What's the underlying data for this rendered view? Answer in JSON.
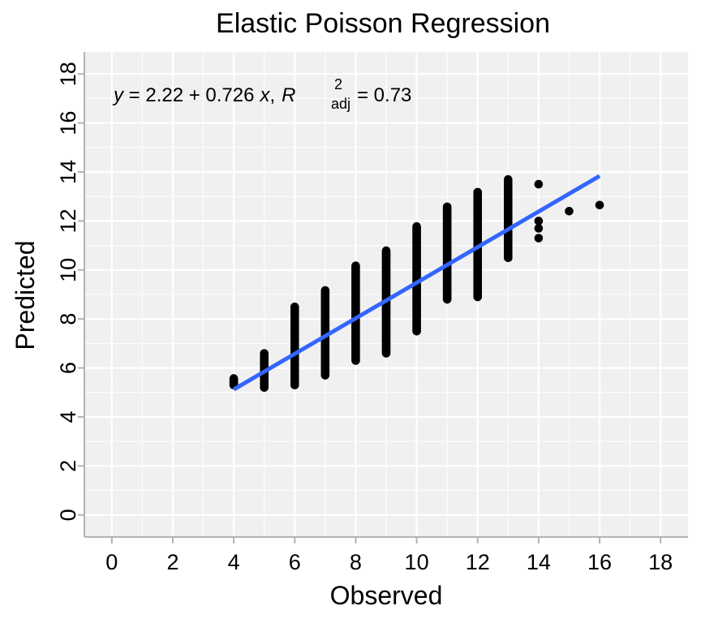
{
  "chart_data": {
    "type": "scatter",
    "title": "Elastic Poisson Regression",
    "xlabel": "Observed",
    "ylabel": "Predicted",
    "xlim": [
      -0.9,
      18.9
    ],
    "ylim": [
      -0.9,
      18.9
    ],
    "x_ticks": [
      0,
      2,
      4,
      6,
      8,
      10,
      12,
      14,
      16,
      18
    ],
    "y_ticks": [
      0,
      2,
      4,
      6,
      8,
      10,
      12,
      14,
      16,
      18
    ],
    "grid": true,
    "colors": {
      "points": "#000000",
      "fit_line": "#3366ff",
      "panel": "#f0f0f0",
      "grid": "#ffffff",
      "axis": "#b3b3b3"
    },
    "annotation": {
      "y": "y",
      "eq_body": " = 2.22 + 0.726",
      "x": "x",
      "sep": ",",
      "R": "R",
      "sup": "2",
      "sub": "adj",
      "value": " = 0.73"
    },
    "fit_line": {
      "intercept": 2.22,
      "slope": 0.726,
      "x_range": [
        4,
        16
      ]
    },
    "point_groups": [
      {
        "x": 4,
        "y_min": 5.3,
        "y_max": 5.6
      },
      {
        "x": 5,
        "y_min": 5.2,
        "y_max": 6.6
      },
      {
        "x": 6,
        "y_min": 5.3,
        "y_max": 8.5
      },
      {
        "x": 7,
        "y_min": 5.7,
        "y_max": 9.2
      },
      {
        "x": 8,
        "y_min": 6.3,
        "y_max": 10.2
      },
      {
        "x": 9,
        "y_min": 6.6,
        "y_max": 10.8
      },
      {
        "x": 10,
        "y_min": 7.5,
        "y_max": 11.8
      },
      {
        "x": 11,
        "y_min": 8.8,
        "y_max": 12.6
      },
      {
        "x": 12,
        "y_min": 8.9,
        "y_max": 13.2
      },
      {
        "x": 13,
        "y_min": 10.5,
        "y_max": 13.7
      }
    ],
    "points": [
      {
        "x": 14,
        "y": 13.5
      },
      {
        "x": 14,
        "y": 12.0
      },
      {
        "x": 14,
        "y": 11.7
      },
      {
        "x": 14,
        "y": 11.3
      },
      {
        "x": 15,
        "y": 12.4
      },
      {
        "x": 16,
        "y": 12.65
      },
      {
        "x": 12,
        "y": 8.95
      },
      {
        "x": 13,
        "y": 10.5
      }
    ]
  }
}
